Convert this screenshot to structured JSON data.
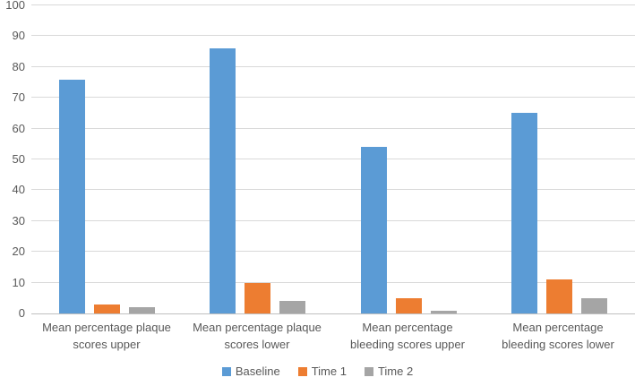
{
  "chart_data": {
    "type": "bar",
    "title": "",
    "xlabel": "",
    "ylabel": "",
    "categories": [
      "Mean percentage plaque scores upper",
      "Mean percentage plaque scores lower",
      "Mean percentage bleeding scores upper",
      "Mean percentage bleeding scores lower"
    ],
    "series": [
      {
        "name": "Baseline",
        "color": "#5B9BD5",
        "values": [
          76,
          86,
          54,
          65
        ]
      },
      {
        "name": "Time 1",
        "color": "#ED7D31",
        "values": [
          3,
          10,
          5,
          11
        ]
      },
      {
        "name": "Time 2",
        "color": "#A5A5A5",
        "values": [
          2,
          4,
          1,
          5
        ]
      }
    ],
    "ylim": [
      0,
      100
    ],
    "yticks": [
      0,
      10,
      20,
      30,
      40,
      50,
      60,
      70,
      80,
      90,
      100
    ],
    "grid": true,
    "legend_position": "bottom"
  },
  "styles": {
    "gridline_color": "#D9D9D9",
    "axis_line_color": "#BFBFBF",
    "text_color": "#595959",
    "background": "#FFFFFF"
  }
}
